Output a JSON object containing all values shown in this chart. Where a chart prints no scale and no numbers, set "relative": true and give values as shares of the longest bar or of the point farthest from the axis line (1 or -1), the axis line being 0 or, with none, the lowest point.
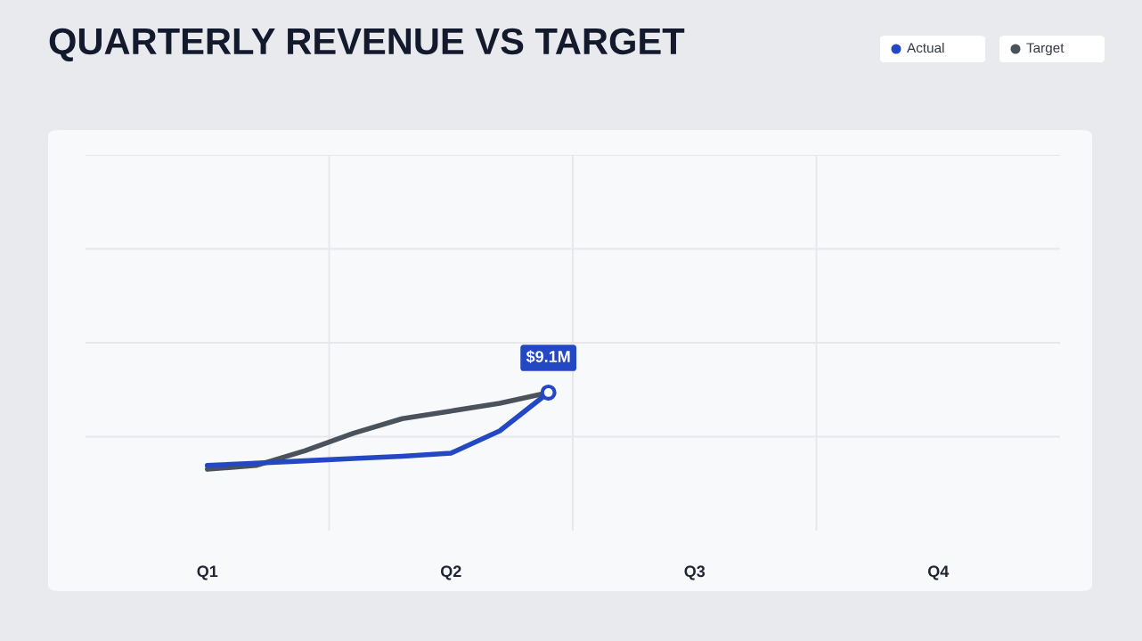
{
  "chart_data": {
    "type": "line",
    "title": "QUARTERLY REVENUE VS TARGET",
    "relative": true,
    "categories": [
      "Q1",
      null,
      null,
      null,
      null,
      "Q2",
      null,
      null,
      null,
      null,
      "Q3",
      null,
      null,
      null,
      null,
      "Q4"
    ],
    "series": [
      {
        "name": "Actual",
        "color": "#2447c4",
        "values": [
          0.05,
          0.08,
          0.11,
          0.14,
          0.17,
          0.21,
          0.5,
          1.0,
          null,
          null,
          null,
          null,
          null,
          null,
          null,
          null
        ]
      },
      {
        "name": "Target",
        "color": "#4a525c",
        "values": [
          0,
          0.05,
          0.24,
          0.47,
          0.66,
          0.76,
          0.86,
          1.0,
          null,
          null,
          null,
          null,
          null,
          null,
          null,
          null
        ]
      }
    ],
    "annotations": [
      {
        "text": "$9.1M",
        "y": 1.0
      }
    ],
    "grid": true,
    "legend": "top right"
  }
}
